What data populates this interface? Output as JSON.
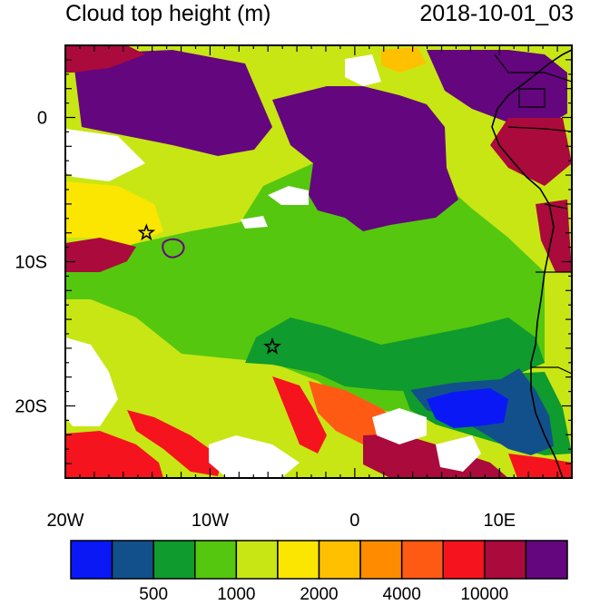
{
  "header": {
    "title": "Cloud top height (m)",
    "datetime": "2018-10-01_03"
  },
  "map": {
    "lon_range": [
      -20,
      15
    ],
    "lat_range": [
      -25,
      5
    ],
    "x_ticks": [
      {
        "value": -20,
        "label": "20W"
      },
      {
        "value": -10,
        "label": "10W"
      },
      {
        "value": 0,
        "label": "0"
      },
      {
        "value": 10,
        "label": "10E"
      }
    ],
    "y_ticks": [
      {
        "value": 0,
        "label": "0"
      },
      {
        "value": -10,
        "label": "10S"
      },
      {
        "value": -20,
        "label": "20S"
      }
    ],
    "markers": [
      {
        "lon": -14.4,
        "lat": -8.0,
        "shape": "star"
      },
      {
        "lon": -5.7,
        "lat": -15.9,
        "shape": "star"
      }
    ]
  },
  "colorbar": {
    "colors": [
      "#0a18f5",
      "#12508c",
      "#0f9b2d",
      "#55c70f",
      "#c8e614",
      "#fae600",
      "#ffc000",
      "#ff8c00",
      "#ff5a14",
      "#f5141e",
      "#aa0a3c",
      "#64067e"
    ],
    "labels": [
      "500",
      "1000",
      "2000",
      "4000",
      "10000"
    ]
  },
  "colors": {
    "white": "#ffffff",
    "coast": "#000000"
  }
}
